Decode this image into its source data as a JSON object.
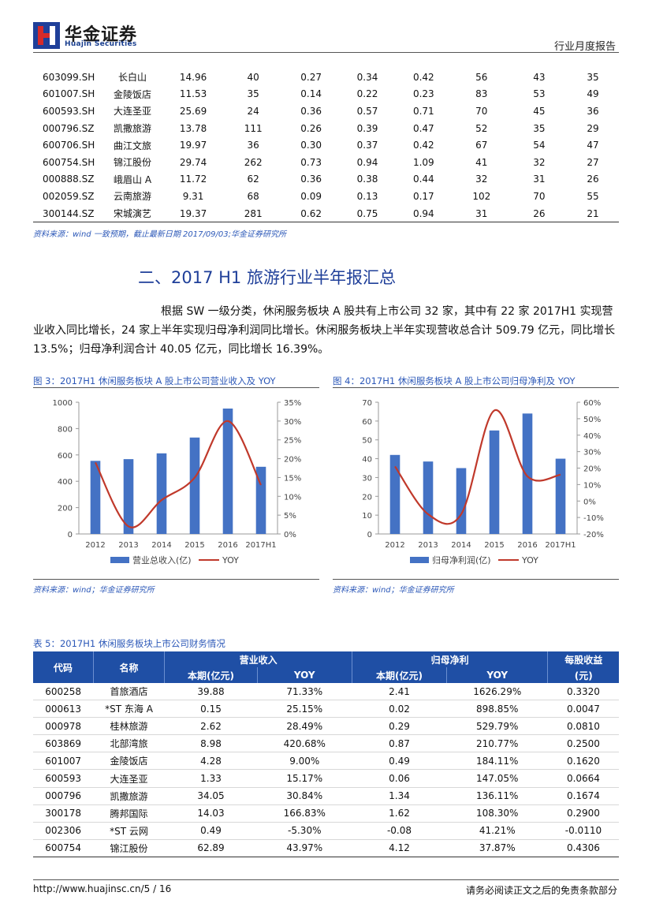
{
  "header": {
    "brand_name": "华金证券",
    "brand_sub": "Huajin Securities",
    "doc_type": "行业月度报告"
  },
  "top_table": {
    "rows": [
      [
        "603099.SH",
        "长白山",
        "14.96",
        "40",
        "0.27",
        "0.34",
        "0.42",
        "56",
        "43",
        "35"
      ],
      [
        "601007.SH",
        "金陵饭店",
        "11.53",
        "35",
        "0.14",
        "0.22",
        "0.23",
        "83",
        "53",
        "49"
      ],
      [
        "600593.SH",
        "大连圣亚",
        "25.69",
        "24",
        "0.36",
        "0.57",
        "0.71",
        "70",
        "45",
        "36"
      ],
      [
        "000796.SZ",
        "凯撒旅游",
        "13.78",
        "111",
        "0.26",
        "0.39",
        "0.47",
        "52",
        "35",
        "29"
      ],
      [
        "600706.SH",
        "曲江文旅",
        "19.97",
        "36",
        "0.30",
        "0.37",
        "0.42",
        "67",
        "54",
        "47"
      ],
      [
        "600754.SH",
        "锦江股份",
        "29.74",
        "262",
        "0.73",
        "0.94",
        "1.09",
        "41",
        "32",
        "27"
      ],
      [
        "000888.SZ",
        "峨眉山 A",
        "11.72",
        "62",
        "0.36",
        "0.38",
        "0.44",
        "32",
        "31",
        "26"
      ],
      [
        "002059.SZ",
        "云南旅游",
        "9.31",
        "68",
        "0.09",
        "0.13",
        "0.17",
        "102",
        "70",
        "55"
      ],
      [
        "300144.SZ",
        "宋城演艺",
        "19.37",
        "281",
        "0.62",
        "0.75",
        "0.94",
        "31",
        "26",
        "21"
      ]
    ],
    "source": "资料来源：wind 一致预期，截止最新日期 2017/09/03;华金证券研究所"
  },
  "section": {
    "title": "二、2017 H1 旅游行业半年报汇总",
    "paragraph": "根据 SW 一级分类，休闲服务板块 A 股共有上市公司 32 家，其中有 22 家 2017H1 实现营业收入同比增长，24 家上半年实现归母净利润同比增长。休闲服务板块上半年实现营收总合计 509.79 亿元，同比增长 13.5%；归母净利润合计 40.05 亿元，同比增长 16.39%。"
  },
  "figures": {
    "fig3_title": "图 3：2017H1 休闲服务板块 A 股上市公司营业收入及 YOY",
    "fig4_title": "图 4：2017H1 休闲服务板块 A 股上市公司归母净利及 YOY",
    "fig3_source": "资料来源：wind；华金证券研究所",
    "fig4_source": "资料来源：wind；华金证券研究所"
  },
  "chart_data": [
    {
      "type": "bar",
      "title": "图 3：2017H1 休闲服务板块 A 股上市公司营业收入及 YOY",
      "categories": [
        "2012",
        "2013",
        "2014",
        "2015",
        "2016",
        "2017H1"
      ],
      "series": [
        {
          "name": "营业总收入(亿)",
          "kind": "bar",
          "axis": "left",
          "values": [
            555,
            568,
            612,
            732,
            952,
            510
          ],
          "color": "#4472c4"
        },
        {
          "name": "YOY",
          "kind": "line",
          "axis": "right",
          "values": [
            19,
            2,
            9,
            15,
            30,
            13
          ],
          "color": "#c0392b"
        }
      ],
      "y_left": {
        "min": 0,
        "max": 1000,
        "ticks": [
          "0",
          "200",
          "400",
          "600",
          "800",
          "1000"
        ]
      },
      "y_right": {
        "min": 0,
        "max": 35,
        "ticks": [
          "0%",
          "5%",
          "10%",
          "15%",
          "20%",
          "25%",
          "30%",
          "35%"
        ]
      },
      "legend_position": "bottom"
    },
    {
      "type": "bar",
      "title": "图 4：2017H1 休闲服务板块 A 股上市公司归母净利及 YOY",
      "categories": [
        "2012",
        "2013",
        "2014",
        "2015",
        "2016",
        "2017H1"
      ],
      "series": [
        {
          "name": "归母净利润(亿)",
          "kind": "bar",
          "axis": "left",
          "values": [
            42,
            38.5,
            35,
            55,
            64,
            40
          ],
          "color": "#4472c4"
        },
        {
          "name": "YOY",
          "kind": "line",
          "axis": "right",
          "values": [
            21,
            -8,
            -8,
            55,
            15,
            16
          ],
          "color": "#c0392b"
        }
      ],
      "y_left": {
        "min": 0,
        "max": 70,
        "ticks": [
          "0",
          "10",
          "20",
          "30",
          "40",
          "50",
          "60",
          "70"
        ]
      },
      "y_right": {
        "min": -20,
        "max": 60,
        "ticks": [
          "-20%",
          "-10%",
          "0%",
          "10%",
          "20%",
          "30%",
          "40%",
          "50%",
          "60%"
        ]
      },
      "legend_position": "bottom"
    }
  ],
  "table5": {
    "title": "表 5：2017H1 休闲服务板块上市公司财务情况",
    "headers": {
      "code": "代码",
      "name": "名称",
      "revenue": "营业收入",
      "net_profit": "归母净利",
      "eps": "每股收益",
      "current_revenue": "本期(亿元)",
      "yoy1": "YOY",
      "current_profit": "本期(亿元)",
      "yoy2": "YOY",
      "eps_unit": "(元)"
    },
    "rows": [
      [
        "600258",
        "首旅酒店",
        "39.88",
        "71.33%",
        "2.41",
        "1626.29%",
        "0.3320"
      ],
      [
        "000613",
        "*ST 东海 A",
        "0.15",
        "25.15%",
        "0.02",
        "898.85%",
        "0.0047"
      ],
      [
        "000978",
        "桂林旅游",
        "2.62",
        "28.49%",
        "0.29",
        "529.79%",
        "0.0810"
      ],
      [
        "603869",
        "北部湾旅",
        "8.98",
        "420.68%",
        "0.87",
        "210.77%",
        "0.2500"
      ],
      [
        "601007",
        "金陵饭店",
        "4.28",
        "9.00%",
        "0.49",
        "184.11%",
        "0.1620"
      ],
      [
        "600593",
        "大连圣亚",
        "1.33",
        "15.17%",
        "0.06",
        "147.05%",
        "0.0664"
      ],
      [
        "000796",
        "凯撒旅游",
        "34.05",
        "30.84%",
        "1.34",
        "136.11%",
        "0.1674"
      ],
      [
        "300178",
        "腾邦国际",
        "14.03",
        "166.83%",
        "1.62",
        "108.30%",
        "0.2900"
      ],
      [
        "002306",
        "*ST 云网",
        "0.49",
        "-5.30%",
        "-0.08",
        "41.21%",
        "-0.0110"
      ],
      [
        "600754",
        "锦江股份",
        "62.89",
        "43.97%",
        "4.12",
        "37.87%",
        "0.4306"
      ]
    ]
  },
  "footer": {
    "url": "http://www.huajinsc.cn/5 / 16",
    "disclaimer": "请务必阅读正文之后的免责条款部分"
  }
}
